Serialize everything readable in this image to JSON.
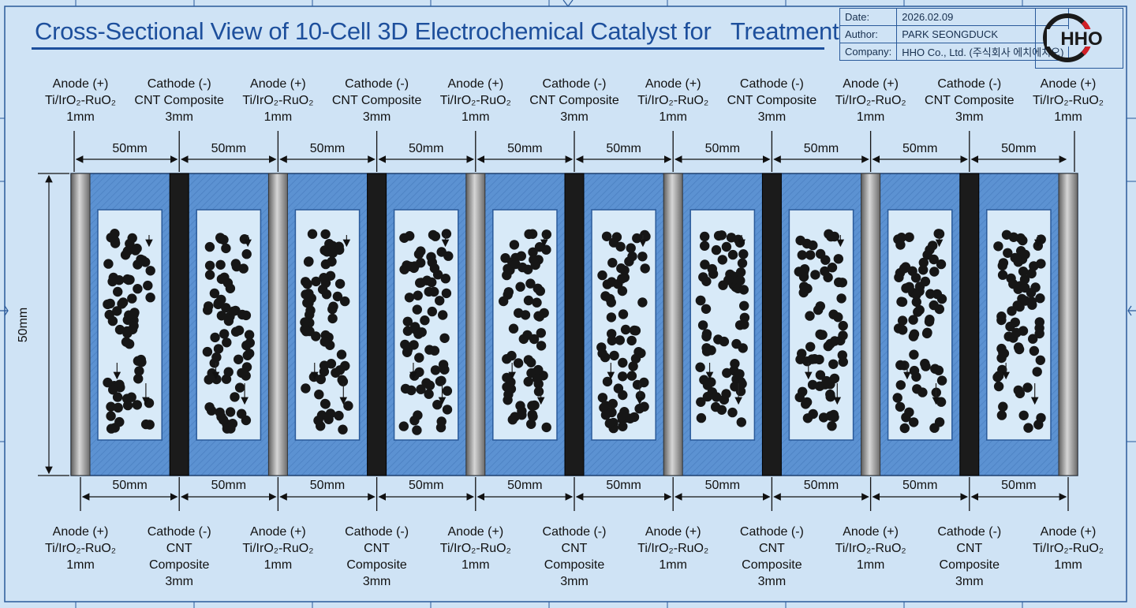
{
  "title": "Cross-Sectional View of 10-Cell 3D Electrochemical Catalyst for   Treatment",
  "info": {
    "date_label": "Date:",
    "date_value": "2026.02.09",
    "author_label": "Author:",
    "author_value": "PARK SEONGDUCK",
    "company_label": "Company:",
    "company_value": "HHO Co., Ltd. (주식회사 에치에치오)"
  },
  "logo_text": "HHO",
  "electrodes": [
    {
      "type": "anode"
    },
    {
      "type": "cathode"
    },
    {
      "type": "anode"
    },
    {
      "type": "cathode"
    },
    {
      "type": "anode"
    },
    {
      "type": "cathode"
    },
    {
      "type": "anode"
    },
    {
      "type": "cathode"
    },
    {
      "type": "anode"
    },
    {
      "type": "cathode"
    },
    {
      "type": "anode"
    }
  ],
  "labels": {
    "anode_top": [
      "Anode (+)",
      "Ti/IrO₂-RuO₂",
      "1mm"
    ],
    "cathode_top": [
      "Cathode (-)",
      "CNT Composite",
      "3mm"
    ],
    "anode_bottom": [
      "Anode (+)",
      "Ti/IrO₂-RuO₂",
      "1mm"
    ],
    "cathode_bottom": [
      "Cathode (-)",
      "CNT",
      "Composite",
      "3mm"
    ]
  },
  "cell_width_label": "50mm",
  "height_label": "50mm",
  "colors": {
    "anode": "#8f8f8f",
    "cathode": "#1b1b1b",
    "cell_fill": "#5c92d2",
    "chamber": "#d8eaf8",
    "particle": "#161616",
    "line": "#1d4f9c",
    "background": "#cfe3f5"
  }
}
